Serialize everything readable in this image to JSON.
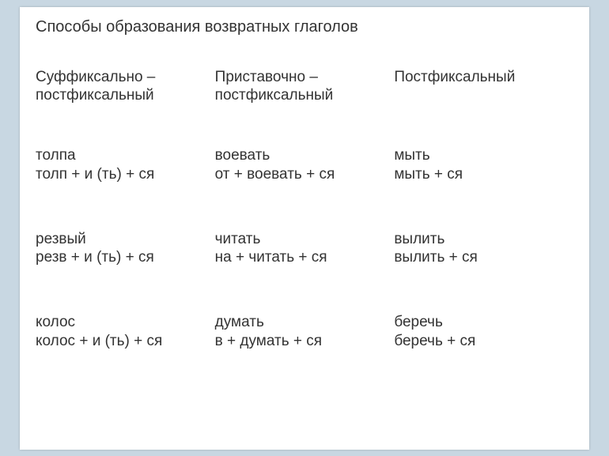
{
  "title": "Способы образования возвратных глаголов",
  "columns": [
    "Суффиксально – постфиксальный",
    "Приставочно – постфиксальный",
    "Постфиксальный"
  ],
  "rows": [
    [
      "толпа\nтолп + и (ть) + ся",
      "воевать\nот + воевать + ся",
      "мыть\nмыть + ся"
    ],
    [
      "резвый\nрезв + и (ть) + ся",
      "читать\nна + читать + ся",
      "вылить\nвылить + ся"
    ],
    [
      "колос\nколос + и (ть) + ся",
      "думать\nв + думать + ся",
      "беречь\nберечь + ся"
    ]
  ]
}
